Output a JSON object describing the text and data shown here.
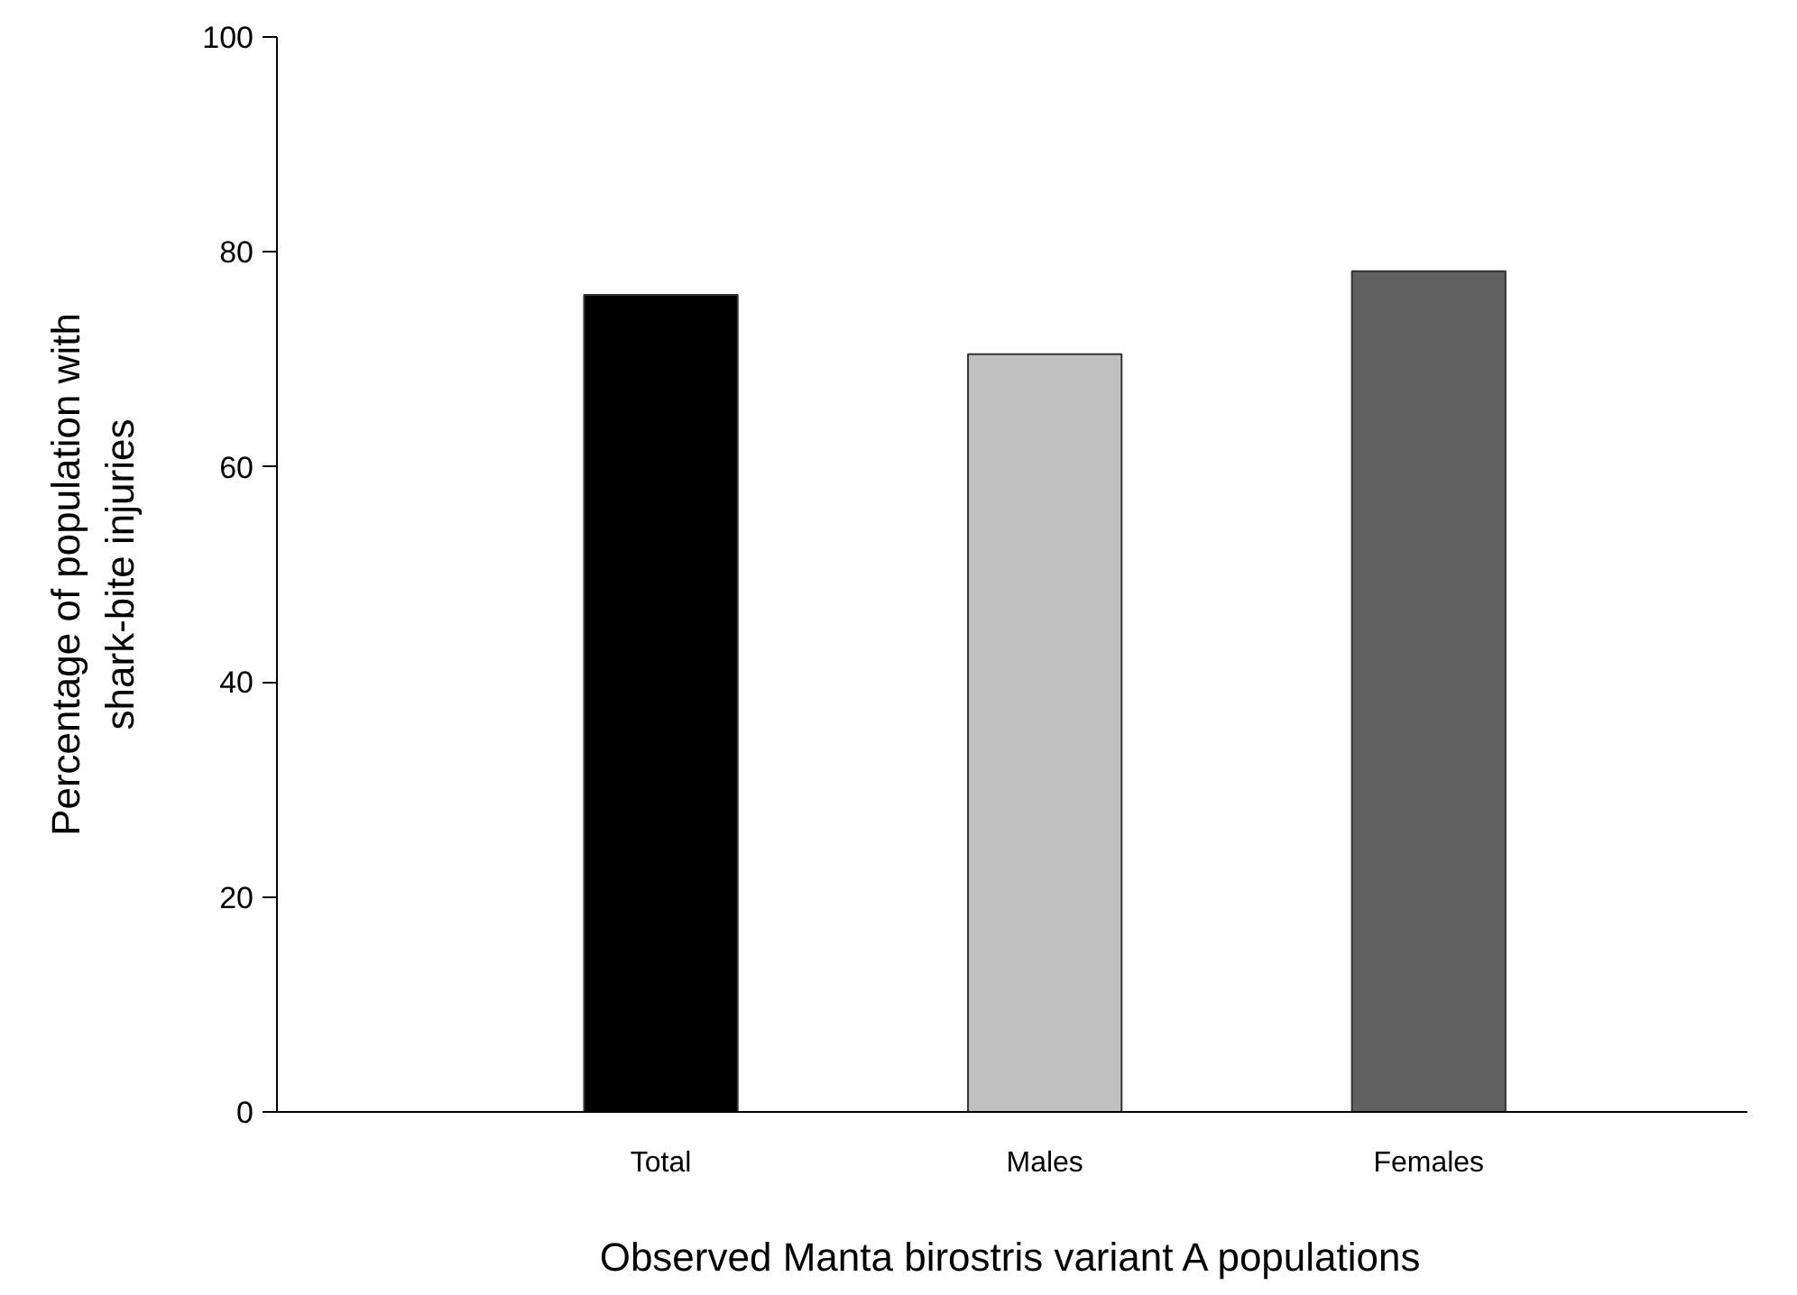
{
  "chart_data": {
    "type": "bar",
    "xlabel": "Observed Manta birostris variant A populations",
    "ylabel": "Percentage of population with\nshark-bite injuries",
    "categories": [
      "Total",
      "Males",
      "Females"
    ],
    "values": [
      76,
      70.5,
      78.2
    ],
    "colors": [
      "#000000",
      "#c0c0c0",
      "#606060"
    ],
    "ylim": [
      0,
      100
    ],
    "yticks": [
      0,
      20,
      40,
      60,
      80,
      100
    ],
    "grid": false
  }
}
